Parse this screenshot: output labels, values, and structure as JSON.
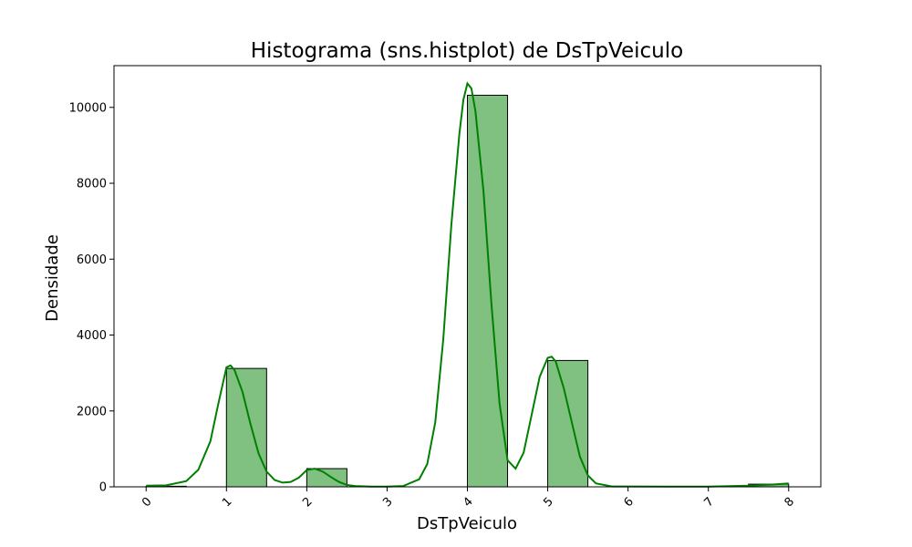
{
  "chart_data": {
    "type": "bar",
    "title": "Histograma (sns.histplot) de DsTpVeiculo",
    "xlabel": "DsTpVeiculo",
    "ylabel": "Densidade",
    "xlim": [
      -0.4,
      8.4
    ],
    "ylim": [
      0,
      11100
    ],
    "xticks": [
      {
        "value": 0,
        "label": "0"
      },
      {
        "value": 1,
        "label": "1"
      },
      {
        "value": 2,
        "label": "2"
      },
      {
        "value": 3,
        "label": "3"
      },
      {
        "value": 4,
        "label": "4"
      },
      {
        "value": 5,
        "label": "5"
      },
      {
        "value": 6,
        "label": "6"
      },
      {
        "value": 7,
        "label": "7"
      },
      {
        "value": 8,
        "label": "8"
      }
    ],
    "yticks": [
      {
        "value": 0,
        "label": "0"
      },
      {
        "value": 2000,
        "label": "2000"
      },
      {
        "value": 4000,
        "label": "4000"
      },
      {
        "value": 6000,
        "label": "6000"
      },
      {
        "value": 8000,
        "label": "8000"
      },
      {
        "value": 10000,
        "label": "10000"
      }
    ],
    "bins": [
      {
        "start": 0.0,
        "end": 0.5,
        "value": 15
      },
      {
        "start": 0.5,
        "end": 1.0,
        "value": 0
      },
      {
        "start": 1.0,
        "end": 1.5,
        "value": 3120
      },
      {
        "start": 1.5,
        "end": 2.0,
        "value": 0
      },
      {
        "start": 2.0,
        "end": 2.5,
        "value": 480
      },
      {
        "start": 2.5,
        "end": 3.0,
        "value": 0
      },
      {
        "start": 3.0,
        "end": 3.5,
        "value": 0
      },
      {
        "start": 3.5,
        "end": 4.0,
        "value": 0
      },
      {
        "start": 4.0,
        "end": 4.5,
        "value": 10320
      },
      {
        "start": 4.5,
        "end": 5.0,
        "value": 0
      },
      {
        "start": 5.0,
        "end": 5.5,
        "value": 3330
      },
      {
        "start": 5.5,
        "end": 6.0,
        "value": 0
      },
      {
        "start": 6.0,
        "end": 6.5,
        "value": 0
      },
      {
        "start": 6.5,
        "end": 7.0,
        "value": 0
      },
      {
        "start": 7.0,
        "end": 7.5,
        "value": 0
      },
      {
        "start": 7.5,
        "end": 8.0,
        "value": 70
      }
    ],
    "kde": {
      "x": [
        0.0,
        0.25,
        0.5,
        0.65,
        0.8,
        0.9,
        1.0,
        1.05,
        1.1,
        1.2,
        1.3,
        1.4,
        1.5,
        1.6,
        1.7,
        1.8,
        1.9,
        2.0,
        2.1,
        2.2,
        2.3,
        2.4,
        2.5,
        2.6,
        2.8,
        3.0,
        3.2,
        3.4,
        3.5,
        3.6,
        3.7,
        3.8,
        3.9,
        3.95,
        4.0,
        4.05,
        4.1,
        4.2,
        4.3,
        4.4,
        4.5,
        4.6,
        4.7,
        4.8,
        4.9,
        5.0,
        5.05,
        5.1,
        5.2,
        5.3,
        5.4,
        5.5,
        5.6,
        5.8,
        6.0,
        6.5,
        7.0,
        7.5,
        7.8,
        8.0
      ],
      "y": [
        30,
        40,
        150,
        450,
        1200,
        2200,
        3150,
        3200,
        3080,
        2500,
        1650,
        880,
        400,
        180,
        110,
        130,
        240,
        440,
        480,
        400,
        260,
        130,
        50,
        20,
        5,
        5,
        20,
        200,
        600,
        1700,
        3900,
        6900,
        9300,
        10200,
        10630,
        10500,
        9900,
        7800,
        4800,
        2200,
        700,
        480,
        900,
        1900,
        2900,
        3400,
        3430,
        3300,
        2600,
        1700,
        800,
        300,
        90,
        10,
        10,
        5,
        5,
        30,
        60,
        90
      ]
    },
    "colors": {
      "bar_fill": "#80c080",
      "bar_edge": "#000000",
      "kde_line": "#008000"
    },
    "grid": false,
    "legend": "none"
  }
}
